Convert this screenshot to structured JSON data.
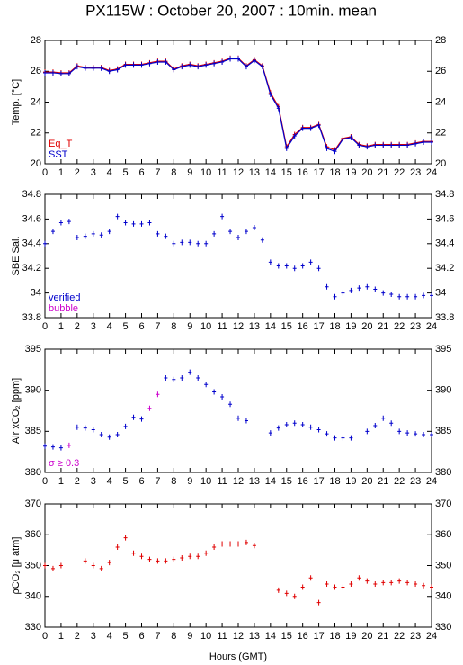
{
  "title": "PX115W : October 20, 2007 : 10min. mean",
  "xlabel": "Hours (GMT)",
  "chart_data": [
    {
      "type": "line",
      "ylabel": "Temp. [°C]",
      "ylim": [
        20,
        28
      ],
      "yticks": [
        20,
        22,
        24,
        26,
        28
      ],
      "xlim": [
        0,
        24
      ],
      "xticks": [
        0,
        1,
        2,
        3,
        4,
        5,
        6,
        7,
        8,
        9,
        10,
        11,
        12,
        13,
        14,
        15,
        16,
        17,
        18,
        19,
        20,
        21,
        22,
        23,
        24
      ],
      "x": [
        0,
        0.5,
        1,
        1.5,
        2,
        2.5,
        3,
        3.5,
        4,
        4.5,
        5,
        5.5,
        6,
        6.5,
        7,
        7.5,
        8,
        8.5,
        9,
        9.5,
        10,
        10.5,
        11,
        11.5,
        12,
        12.5,
        13,
        13.5,
        14,
        14.5,
        15,
        15.5,
        16,
        16.5,
        17,
        17.5,
        18,
        18.5,
        19,
        19.5,
        20,
        20.5,
        21,
        21.5,
        22,
        22.5,
        23,
        23.5,
        24
      ],
      "series": [
        {
          "name": "Eq_T",
          "color": "#e00000",
          "values": [
            25.95,
            25.95,
            25.9,
            25.9,
            26.35,
            26.25,
            26.25,
            26.25,
            26.05,
            26.15,
            26.45,
            26.45,
            26.45,
            26.55,
            26.65,
            26.65,
            26.15,
            26.35,
            26.45,
            26.35,
            26.45,
            26.55,
            26.65,
            26.85,
            26.85,
            26.35,
            26.75,
            26.35,
            24.6,
            23.7,
            21.1,
            21.9,
            22.35,
            22.35,
            22.55,
            21.1,
            20.9,
            21.65,
            21.75,
            21.25,
            21.15,
            21.25,
            21.25,
            21.25,
            21.25,
            21.25,
            21.35,
            21.45,
            21.45
          ]
        },
        {
          "name": "SST",
          "color": "#0000cc",
          "values": [
            25.9,
            25.9,
            25.85,
            25.85,
            26.3,
            26.2,
            26.2,
            26.2,
            26.0,
            26.1,
            26.4,
            26.4,
            26.4,
            26.5,
            26.6,
            26.6,
            26.1,
            26.3,
            26.4,
            26.3,
            26.4,
            26.5,
            26.6,
            26.8,
            26.8,
            26.3,
            26.7,
            26.3,
            24.5,
            23.6,
            21.0,
            21.8,
            22.3,
            22.3,
            22.5,
            21.0,
            20.8,
            21.6,
            21.7,
            21.2,
            21.1,
            21.2,
            21.2,
            21.2,
            21.2,
            21.2,
            21.3,
            21.4,
            21.4
          ]
        }
      ]
    },
    {
      "type": "scatter",
      "ylabel": "SBE Sal.",
      "ylim": [
        33.8,
        34.8
      ],
      "yticks": [
        33.8,
        34,
        34.2,
        34.4,
        34.6,
        34.8
      ],
      "xlim": [
        0,
        24
      ],
      "xticks": [
        0,
        1,
        2,
        3,
        4,
        5,
        6,
        7,
        8,
        9,
        10,
        11,
        12,
        13,
        14,
        15,
        16,
        17,
        18,
        19,
        20,
        21,
        22,
        23,
        24
      ],
      "x": [
        0,
        0.5,
        1,
        1.5,
        2,
        2.5,
        3,
        3.5,
        4,
        4.5,
        5,
        5.5,
        6,
        6.5,
        7,
        7.5,
        8,
        8.5,
        9,
        9.5,
        10,
        10.5,
        11,
        11.5,
        12,
        12.5,
        13,
        13.5,
        14,
        14.5,
        15,
        15.5,
        16,
        16.5,
        17,
        17.5,
        18,
        18.5,
        19,
        19.5,
        20,
        20.5,
        21,
        21.5,
        22,
        22.5,
        23,
        23.5,
        24
      ],
      "series": [
        {
          "name": "verified",
          "color": "#0000cc",
          "values": [
            34.4,
            34.5,
            34.57,
            34.58,
            34.45,
            34.46,
            34.48,
            34.47,
            34.5,
            34.62,
            34.57,
            34.56,
            34.56,
            34.57,
            34.48,
            34.46,
            34.4,
            34.41,
            34.41,
            34.4,
            34.4,
            34.48,
            34.62,
            34.5,
            34.45,
            34.5,
            34.53,
            34.43,
            34.25,
            34.22,
            34.22,
            34.2,
            34.22,
            34.25,
            34.2,
            34.05,
            33.97,
            34.0,
            34.02,
            34.04,
            34.05,
            34.03,
            34.0,
            33.99,
            33.97,
            33.97,
            33.97,
            33.98,
            33.98
          ]
        },
        {
          "name": "bubble",
          "color": "#cc00cc",
          "values": [
            null,
            null,
            null,
            null,
            null,
            null,
            null,
            null,
            null,
            null,
            null,
            null,
            null,
            null,
            null,
            null,
            null,
            null,
            null,
            null,
            null,
            null,
            null,
            null,
            null,
            null,
            null,
            null,
            null,
            null,
            null,
            null,
            null,
            null,
            null,
            null,
            null,
            null,
            null,
            null,
            null,
            null,
            null,
            null,
            null,
            null,
            null,
            null,
            null
          ]
        }
      ]
    },
    {
      "type": "scatter",
      "ylabel": "Air xCO₂ [ppm]",
      "ylim": [
        380,
        395
      ],
      "yticks": [
        380,
        385,
        390,
        395
      ],
      "xlim": [
        0,
        24
      ],
      "xticks": [
        0,
        1,
        2,
        3,
        4,
        5,
        6,
        7,
        8,
        9,
        10,
        11,
        12,
        13,
        14,
        15,
        16,
        17,
        18,
        19,
        20,
        21,
        22,
        23,
        24
      ],
      "x": [
        0,
        0.5,
        1,
        1.5,
        2,
        2.5,
        3,
        3.5,
        4,
        4.5,
        5,
        5.5,
        6,
        6.5,
        7,
        7.5,
        8,
        8.5,
        9,
        9.5,
        10,
        10.5,
        11,
        11.5,
        12,
        12.5,
        13,
        13.5,
        14,
        14.5,
        15,
        15.5,
        16,
        16.5,
        17,
        17.5,
        18,
        18.5,
        19,
        19.5,
        20,
        20.5,
        21,
        21.5,
        22,
        22.5,
        23,
        23.5,
        24
      ],
      "series": [
        {
          "color": "#0000cc",
          "values": [
            383.2,
            383.1,
            383.0,
            null,
            385.5,
            385.4,
            385.2,
            384.6,
            384.3,
            384.6,
            385.6,
            386.7,
            386.5,
            null,
            null,
            391.5,
            391.3,
            391.5,
            392.2,
            391.5,
            390.7,
            389.8,
            389.2,
            388.3,
            386.6,
            386.3,
            null,
            null,
            384.8,
            385.4,
            385.8,
            386.0,
            385.8,
            385.5,
            385.2,
            384.7,
            384.2,
            384.2,
            384.2,
            null,
            385.0,
            385.7,
            386.6,
            386.0,
            385.0,
            384.8,
            384.7,
            384.6,
            384.6
          ]
        },
        {
          "name": "σ ≥ 0.3",
          "color": "#cc00cc",
          "values": [
            null,
            null,
            null,
            383.3,
            null,
            null,
            null,
            null,
            null,
            null,
            null,
            null,
            null,
            387.8,
            389.5,
            null,
            null,
            null,
            null,
            null,
            null,
            null,
            null,
            null,
            null,
            null,
            null,
            null,
            null,
            null,
            null,
            null,
            null,
            null,
            null,
            null,
            null,
            null,
            null,
            null,
            null,
            null,
            null,
            null,
            null,
            null,
            null,
            null,
            null
          ]
        }
      ]
    },
    {
      "type": "scatter",
      "ylabel": "ρCO₂ [μ atm]",
      "ylim": [
        330,
        370
      ],
      "yticks": [
        330,
        340,
        350,
        360,
        370
      ],
      "xlim": [
        0,
        24
      ],
      "xticks": [
        0,
        1,
        2,
        3,
        4,
        5,
        6,
        7,
        8,
        9,
        10,
        11,
        12,
        13,
        14,
        15,
        16,
        17,
        18,
        19,
        20,
        21,
        22,
        23,
        24
      ],
      "x": [
        0,
        0.5,
        1,
        1.5,
        2,
        2.5,
        3,
        3.5,
        4,
        4.5,
        5,
        5.5,
        6,
        6.5,
        7,
        7.5,
        8,
        8.5,
        9,
        9.5,
        10,
        10.5,
        11,
        11.5,
        12,
        12.5,
        13,
        13.5,
        14,
        14.5,
        15,
        15.5,
        16,
        16.5,
        17,
        17.5,
        18,
        18.5,
        19,
        19.5,
        20,
        20.5,
        21,
        21.5,
        22,
        22.5,
        23,
        23.5,
        24
      ],
      "series": [
        {
          "color": "#e00000",
          "values": [
            350,
            349,
            350,
            null,
            null,
            351.5,
            350,
            349,
            351,
            356,
            359,
            354,
            353,
            352,
            351.5,
            351.5,
            352,
            352.5,
            353,
            353,
            354,
            356,
            357,
            357,
            357,
            357.5,
            356.5,
            null,
            null,
            342,
            341,
            340,
            343,
            346,
            338,
            344,
            343,
            343,
            344,
            346,
            345,
            344,
            344.5,
            344.5,
            345,
            344.5,
            344,
            343.5,
            343
          ]
        }
      ]
    }
  ]
}
